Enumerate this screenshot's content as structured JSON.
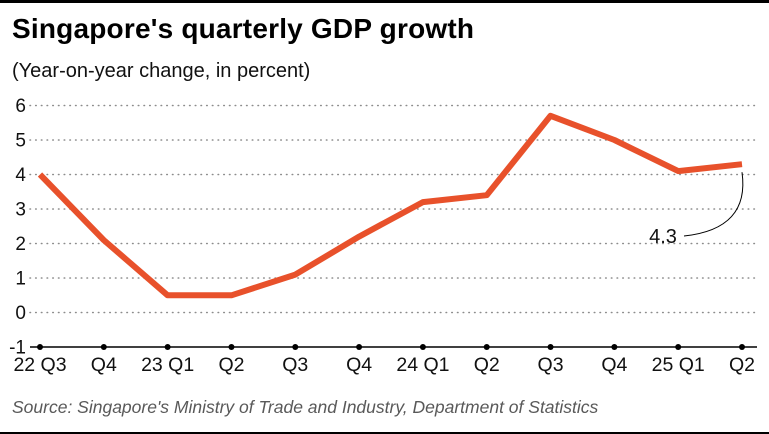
{
  "header": {
    "title": "Singapore's quarterly GDP growth",
    "subtitle": "(Year-on-year change, in percent)"
  },
  "footer": {
    "source": "Source: Singapore's Ministry of Trade and Industry, Department of Statistics"
  },
  "chart_data": {
    "type": "line",
    "title": "Singapore's quarterly GDP growth",
    "subtitle": "(Year-on-year change, in percent)",
    "categories": [
      "22 Q3",
      "Q4",
      "23 Q1",
      "Q2",
      "Q3",
      "Q4",
      "24 Q1",
      "Q2",
      "Q3",
      "Q4",
      "25 Q1",
      "Q2"
    ],
    "values": [
      4.0,
      2.1,
      0.5,
      0.5,
      1.1,
      2.2,
      3.2,
      3.4,
      5.7,
      5.0,
      4.1,
      4.3
    ],
    "xlabel": "",
    "ylabel": "Year-on-year change, in percent",
    "ylim": [
      -1,
      6
    ],
    "yticks": [
      -1,
      0,
      1,
      2,
      3,
      4,
      5,
      6
    ],
    "grid": "horizontal-dotted",
    "legend": "none",
    "line_color": "#e8512b",
    "axis_color": "#000000",
    "grid_color": "#8c8c8c",
    "annotation": {
      "text": "4.3",
      "target_index": 11
    }
  }
}
